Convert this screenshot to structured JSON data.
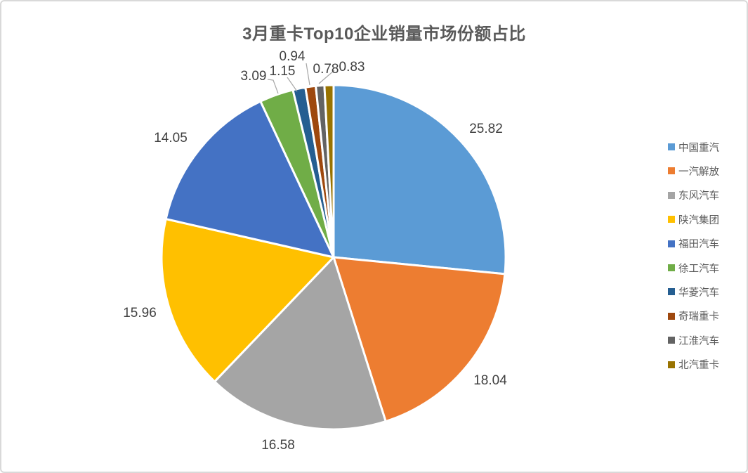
{
  "window": {
    "background_color": "#FFFFFF",
    "frame_border_color": "#D9D9D9"
  },
  "chart_data": {
    "type": "pie",
    "title": "3月重卡Top10企业销量市场份额占比",
    "categories": [
      "中国重汽",
      "一汽解放",
      "东风汽车",
      "陕汽集团",
      "福田汽车",
      "徐工汽车",
      "华菱汽车",
      "奇瑞重卡",
      "江淮汽车",
      "北汽重卡"
    ],
    "values": [
      25.82,
      18.04,
      16.58,
      15.96,
      14.05,
      3.09,
      1.15,
      0.94,
      0.78,
      0.83
    ],
    "data_labels": [
      "25.82",
      "18.04",
      "16.58",
      "15.96",
      "14.05",
      "3.09",
      "1.15",
      "0.94",
      "0.78",
      "0.83"
    ],
    "colors": [
      "#5B9BD5",
      "#ED7D31",
      "#A5A5A5",
      "#FFC000",
      "#4472C4",
      "#70AD47",
      "#255E91",
      "#9E480E",
      "#636363",
      "#997300"
    ],
    "legend_position": "right",
    "start_angle_deg": 0,
    "direction": "clockwise",
    "label_decimals": 2,
    "title_color": "#595959",
    "label_color": "#404040",
    "leader_line_color": "#A6A6A6",
    "slice_border_color": "#FFFFFF"
  }
}
